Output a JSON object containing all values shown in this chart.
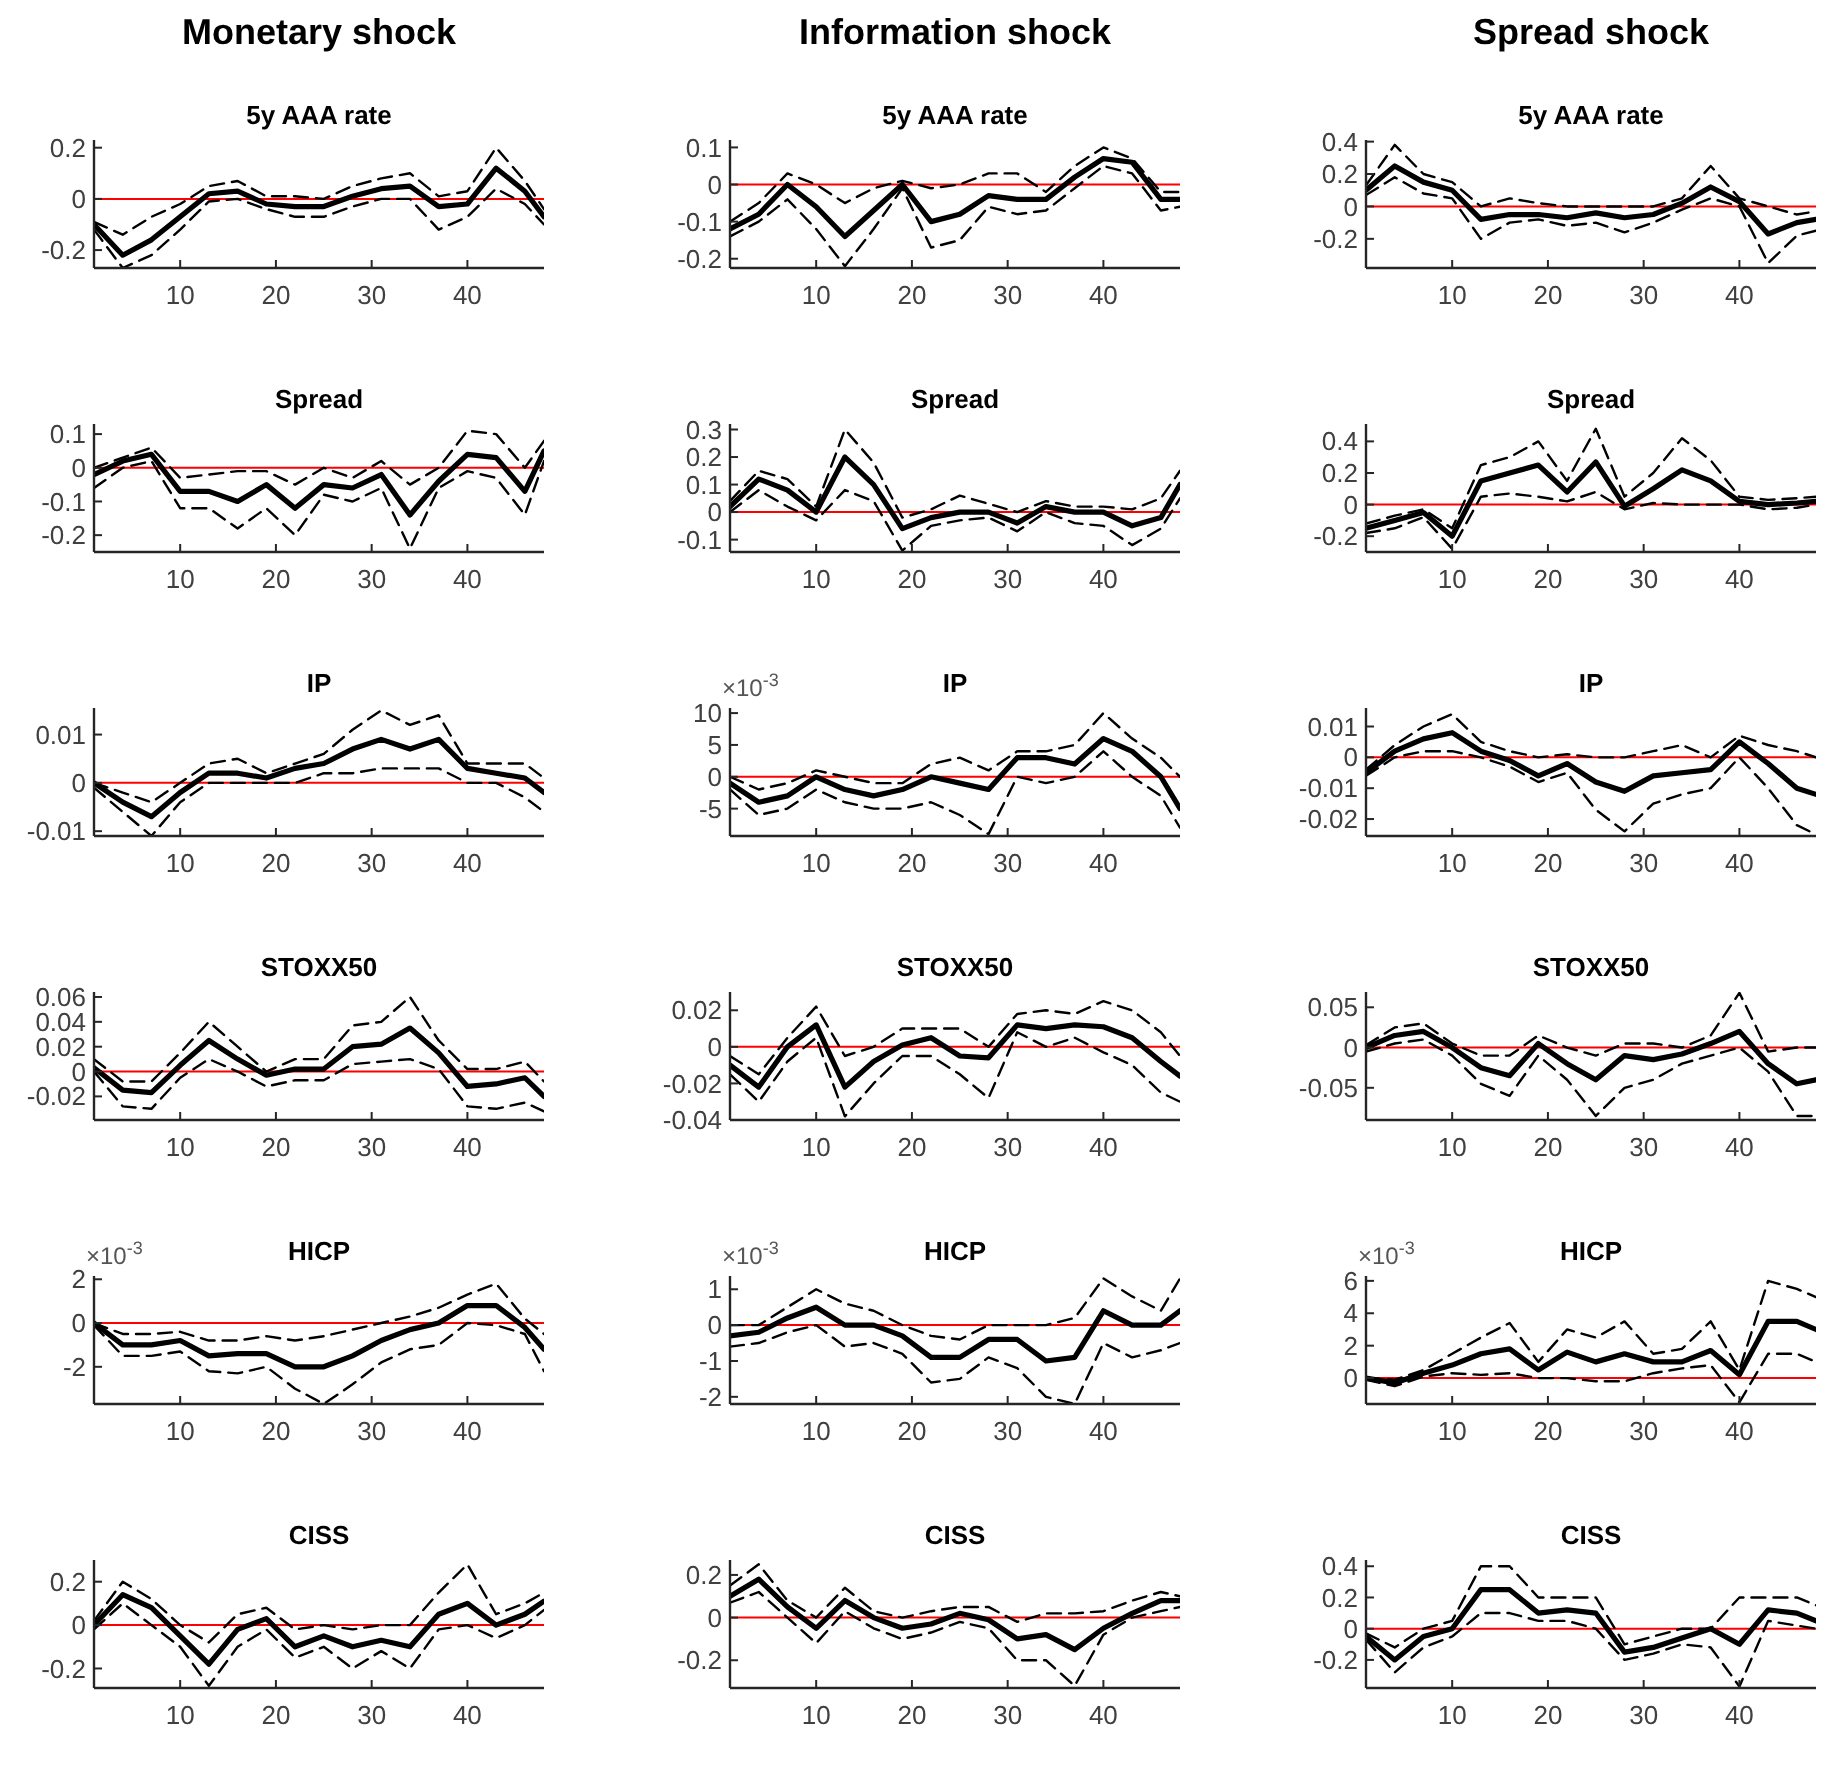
{
  "chart_data": [
    {
      "type": "line",
      "title": "Monetary shock",
      "subtitle": "5y AAA rate",
      "x": [
        1,
        4,
        7,
        10,
        13,
        16,
        19,
        22,
        25,
        28,
        31,
        34,
        37,
        40,
        43,
        46,
        48
      ],
      "xlim": [
        1,
        48
      ],
      "xticks": [
        10,
        20,
        30,
        40
      ],
      "ylim": [
        -0.27,
        0.23
      ],
      "yticks": [
        -0.2,
        0,
        0.2
      ],
      "ref_lines": [
        {
          "axis": "y",
          "value": 0,
          "color": "#ff0000"
        }
      ],
      "series": [
        {
          "color": "#000000",
          "line_style": "solid",
          "values": [
            -0.1,
            -0.22,
            -0.16,
            -0.07,
            0.02,
            0.03,
            -0.02,
            -0.03,
            -0.03,
            0.01,
            0.04,
            0.05,
            -0.03,
            -0.02,
            0.12,
            0.03,
            -0.07
          ]
        },
        {
          "color": "#000000",
          "line_style": "dashed",
          "values": [
            -0.09,
            -0.14,
            -0.07,
            -0.02,
            0.05,
            0.07,
            0.01,
            0.01,
            0.0,
            0.05,
            0.08,
            0.1,
            0.01,
            0.03,
            0.2,
            0.07,
            -0.04
          ]
        },
        {
          "color": "#000000",
          "line_style": "dashed",
          "values": [
            -0.12,
            -0.27,
            -0.22,
            -0.12,
            -0.01,
            0.0,
            -0.04,
            -0.07,
            -0.07,
            -0.03,
            0.0,
            0.0,
            -0.12,
            -0.07,
            0.04,
            -0.02,
            -0.1
          ]
        }
      ]
    },
    {
      "type": "line",
      "title": "Information shock",
      "subtitle": "5y AAA rate",
      "x": [
        1,
        4,
        7,
        10,
        13,
        16,
        19,
        22,
        25,
        28,
        31,
        34,
        37,
        40,
        43,
        46,
        48
      ],
      "xlim": [
        1,
        48
      ],
      "xticks": [
        10,
        20,
        30,
        40
      ],
      "ylim": [
        -0.225,
        0.12
      ],
      "yticks": [
        -0.2,
        -0.1,
        0,
        0.1
      ],
      "ref_lines": [
        {
          "axis": "y",
          "value": 0,
          "color": "#ff0000"
        }
      ],
      "series": [
        {
          "color": "#000000",
          "line_style": "solid",
          "values": [
            -0.12,
            -0.08,
            0.0,
            -0.06,
            -0.14,
            -0.07,
            0.0,
            -0.1,
            -0.08,
            -0.03,
            -0.04,
            -0.04,
            0.02,
            0.07,
            0.06,
            -0.04,
            -0.04
          ]
        },
        {
          "color": "#000000",
          "line_style": "dashed",
          "values": [
            -0.1,
            -0.05,
            0.03,
            0.0,
            -0.05,
            -0.01,
            0.01,
            -0.01,
            0.0,
            0.03,
            0.03,
            -0.02,
            0.05,
            0.1,
            0.07,
            -0.02,
            -0.02
          ]
        },
        {
          "color": "#000000",
          "line_style": "dashed",
          "values": [
            -0.14,
            -0.1,
            -0.04,
            -0.12,
            -0.22,
            -0.12,
            -0.01,
            -0.17,
            -0.15,
            -0.06,
            -0.08,
            -0.07,
            -0.01,
            0.05,
            0.03,
            -0.07,
            -0.06
          ]
        }
      ]
    },
    {
      "type": "line",
      "title": "Spread shock",
      "subtitle": "5y AAA rate",
      "x": [
        1,
        4,
        7,
        10,
        13,
        16,
        19,
        22,
        25,
        28,
        31,
        34,
        37,
        40,
        43,
        46,
        48
      ],
      "xlim": [
        1,
        48
      ],
      "xticks": [
        10,
        20,
        30,
        40
      ],
      "ylim": [
        -0.38,
        0.41
      ],
      "yticks": [
        -0.2,
        0,
        0.2,
        0.4
      ],
      "ref_lines": [
        {
          "axis": "y",
          "value": 0,
          "color": "#ff0000"
        }
      ],
      "series": [
        {
          "color": "#000000",
          "line_style": "solid",
          "values": [
            0.1,
            0.25,
            0.15,
            0.1,
            -0.08,
            -0.05,
            -0.05,
            -0.07,
            -0.04,
            -0.07,
            -0.05,
            0.02,
            0.12,
            0.03,
            -0.17,
            -0.1,
            -0.08
          ]
        },
        {
          "color": "#000000",
          "line_style": "dashed",
          "values": [
            0.13,
            0.38,
            0.2,
            0.15,
            0.0,
            0.05,
            0.02,
            0.0,
            0.0,
            0.0,
            0.0,
            0.05,
            0.25,
            0.05,
            0.0,
            -0.05,
            -0.03
          ]
        },
        {
          "color": "#000000",
          "line_style": "dashed",
          "values": [
            0.07,
            0.18,
            0.08,
            0.05,
            -0.2,
            -0.1,
            -0.08,
            -0.12,
            -0.1,
            -0.16,
            -0.1,
            -0.02,
            0.05,
            0.0,
            -0.35,
            -0.18,
            -0.15
          ]
        }
      ]
    },
    {
      "type": "line",
      "title": "Spread",
      "x": [
        1,
        4,
        7,
        10,
        13,
        16,
        19,
        22,
        25,
        28,
        31,
        34,
        37,
        40,
        43,
        46,
        48
      ],
      "xlim": [
        1,
        48
      ],
      "xticks": [
        10,
        20,
        30,
        40
      ],
      "ylim": [
        -0.25,
        0.13
      ],
      "yticks": [
        -0.2,
        -0.1,
        0,
        0.1
      ],
      "ref_lines": [
        {
          "axis": "y",
          "value": 0,
          "color": "#ff0000"
        }
      ],
      "series": [
        {
          "color": "#000000",
          "line_style": "solid",
          "values": [
            -0.02,
            0.02,
            0.04,
            -0.07,
            -0.07,
            -0.1,
            -0.05,
            -0.12,
            -0.05,
            -0.06,
            -0.02,
            -0.14,
            -0.04,
            0.04,
            0.03,
            -0.07,
            0.05
          ]
        },
        {
          "color": "#000000",
          "line_style": "dashed",
          "values": [
            0.0,
            0.03,
            0.06,
            -0.03,
            -0.02,
            -0.01,
            -0.01,
            -0.05,
            0.0,
            -0.03,
            0.02,
            -0.05,
            0.0,
            0.11,
            0.1,
            0.0,
            0.08
          ]
        },
        {
          "color": "#000000",
          "line_style": "dashed",
          "values": [
            -0.06,
            0.0,
            0.02,
            -0.12,
            -0.12,
            -0.18,
            -0.12,
            -0.2,
            -0.08,
            -0.1,
            -0.06,
            -0.24,
            -0.06,
            -0.01,
            -0.03,
            -0.14,
            0.02
          ]
        }
      ]
    },
    {
      "type": "line",
      "title": "Spread",
      "x": [
        1,
        4,
        7,
        10,
        13,
        16,
        19,
        22,
        25,
        28,
        31,
        34,
        37,
        40,
        43,
        46,
        48
      ],
      "xlim": [
        1,
        48
      ],
      "xticks": [
        10,
        20,
        30,
        40
      ],
      "ylim": [
        -0.145,
        0.32
      ],
      "yticks": [
        -0.1,
        0,
        0.1,
        0.2,
        0.3
      ],
      "ref_lines": [
        {
          "axis": "y",
          "value": 0,
          "color": "#ff0000"
        }
      ],
      "series": [
        {
          "color": "#000000",
          "line_style": "solid",
          "values": [
            0.02,
            0.12,
            0.08,
            0.0,
            0.2,
            0.1,
            -0.06,
            -0.02,
            0.0,
            0.0,
            -0.04,
            0.02,
            0.0,
            0.0,
            -0.05,
            -0.02,
            0.1
          ]
        },
        {
          "color": "#000000",
          "line_style": "dashed",
          "values": [
            0.04,
            0.15,
            0.12,
            0.02,
            0.3,
            0.18,
            -0.02,
            0.01,
            0.06,
            0.03,
            0.0,
            0.04,
            0.02,
            0.02,
            0.01,
            0.05,
            0.15
          ]
        },
        {
          "color": "#000000",
          "line_style": "dashed",
          "values": [
            0.0,
            0.08,
            0.02,
            -0.03,
            0.08,
            0.04,
            -0.14,
            -0.05,
            -0.03,
            -0.02,
            -0.07,
            0.0,
            -0.04,
            -0.05,
            -0.12,
            -0.06,
            0.05
          ]
        }
      ]
    },
    {
      "type": "line",
      "title": "Spread",
      "x": [
        1,
        4,
        7,
        10,
        13,
        16,
        19,
        22,
        25,
        28,
        31,
        34,
        37,
        40,
        43,
        46,
        48
      ],
      "xlim": [
        1,
        48
      ],
      "xticks": [
        10,
        20,
        30,
        40
      ],
      "ylim": [
        -0.3,
        0.51
      ],
      "yticks": [
        -0.2,
        0,
        0.2,
        0.4
      ],
      "ref_lines": [
        {
          "axis": "y",
          "value": 0,
          "color": "#ff0000"
        }
      ],
      "series": [
        {
          "color": "#000000",
          "line_style": "solid",
          "values": [
            -0.15,
            -0.1,
            -0.05,
            -0.2,
            0.15,
            0.2,
            0.25,
            0.08,
            0.27,
            -0.01,
            0.1,
            0.22,
            0.15,
            0.02,
            0.0,
            0.01,
            0.02
          ]
        },
        {
          "color": "#000000",
          "line_style": "dashed",
          "values": [
            -0.12,
            -0.07,
            -0.03,
            -0.15,
            0.25,
            0.3,
            0.4,
            0.15,
            0.48,
            0.05,
            0.2,
            0.42,
            0.28,
            0.05,
            0.03,
            0.04,
            0.05
          ]
        },
        {
          "color": "#000000",
          "line_style": "dashed",
          "values": [
            -0.18,
            -0.15,
            -0.08,
            -0.28,
            0.05,
            0.07,
            0.05,
            0.02,
            0.08,
            -0.03,
            0.01,
            0.0,
            0.0,
            0.0,
            -0.03,
            -0.02,
            0.0
          ]
        }
      ]
    },
    {
      "type": "line",
      "title": "IP",
      "x": [
        1,
        4,
        7,
        10,
        13,
        16,
        19,
        22,
        25,
        28,
        31,
        34,
        37,
        40,
        43,
        46,
        48
      ],
      "xlim": [
        1,
        48
      ],
      "xticks": [
        10,
        20,
        30,
        40
      ],
      "ylim": [
        -0.011,
        0.0155
      ],
      "yticks": [
        -0.01,
        0,
        0.01
      ],
      "ref_lines": [
        {
          "axis": "y",
          "value": 0,
          "color": "#ff0000"
        }
      ],
      "series": [
        {
          "color": "#000000",
          "line_style": "solid",
          "values": [
            0,
            -0.004,
            -0.007,
            -0.002,
            0.002,
            0.002,
            0.001,
            0.003,
            0.004,
            0.007,
            0.009,
            0.007,
            0.009,
            0.003,
            0.002,
            0.001,
            -0.002
          ]
        },
        {
          "color": "#000000",
          "line_style": "dashed",
          "values": [
            0.0,
            -0.002,
            -0.004,
            0.0,
            0.004,
            0.005,
            0.002,
            0.004,
            0.006,
            0.011,
            0.015,
            0.012,
            0.014,
            0.004,
            0.004,
            0.004,
            0.001
          ]
        },
        {
          "color": "#000000",
          "line_style": "dashed",
          "values": [
            -0.001,
            -0.006,
            -0.011,
            -0.004,
            0.0,
            0.0,
            0.0,
            0.0,
            0.002,
            0.002,
            0.003,
            0.003,
            0.003,
            0.0,
            0.0,
            -0.003,
            -0.006
          ]
        }
      ]
    },
    {
      "type": "line",
      "title": "IP",
      "annotations": [
        "×10$^{-3}$"
      ],
      "x": [
        1,
        4,
        7,
        10,
        13,
        16,
        19,
        22,
        25,
        28,
        31,
        34,
        37,
        40,
        43,
        46,
        48
      ],
      "xlim": [
        1,
        48
      ],
      "xticks": [
        10,
        20,
        30,
        40
      ],
      "ylim": [
        -9.3,
        10.8
      ],
      "yticks": [
        -5,
        0,
        5,
        10
      ],
      "ref_lines": [
        {
          "axis": "y",
          "value": 0,
          "color": "#ff0000"
        }
      ],
      "series": [
        {
          "color": "#000000",
          "line_style": "solid",
          "values": [
            -1,
            -4,
            -3,
            0,
            -2,
            -3,
            -2,
            0,
            -1,
            -2,
            3,
            3,
            2,
            6,
            4,
            0,
            -5
          ]
        },
        {
          "color": "#000000",
          "line_style": "dashed",
          "values": [
            0,
            -2,
            -1,
            1,
            0,
            -1,
            -1,
            2,
            3,
            1,
            4,
            4,
            5,
            10,
            6,
            3,
            0
          ]
        },
        {
          "color": "#000000",
          "line_style": "dashed",
          "values": [
            -2,
            -6,
            -5,
            -2,
            -4,
            -5,
            -5,
            -4,
            -6,
            -9,
            0,
            -1,
            0,
            4,
            0,
            -3,
            -8
          ]
        }
      ]
    },
    {
      "type": "line",
      "title": "IP",
      "x": [
        1,
        4,
        7,
        10,
        13,
        16,
        19,
        22,
        25,
        28,
        31,
        34,
        37,
        40,
        43,
        46,
        48
      ],
      "xlim": [
        1,
        48
      ],
      "xticks": [
        10,
        20,
        30,
        40
      ],
      "ylim": [
        -0.0255,
        0.016
      ],
      "yticks": [
        -0.02,
        -0.01,
        0,
        0.01
      ],
      "ref_lines": [
        {
          "axis": "y",
          "value": 0,
          "color": "#ff0000"
        }
      ],
      "series": [
        {
          "color": "#000000",
          "line_style": "solid",
          "values": [
            -0.005,
            0.002,
            0.006,
            0.008,
            0.002,
            -0.001,
            -0.006,
            -0.002,
            -0.008,
            -0.011,
            -0.006,
            -0.005,
            -0.004,
            0.005,
            -0.002,
            -0.01,
            -0.012
          ]
        },
        {
          "color": "#000000",
          "line_style": "dashed",
          "values": [
            -0.004,
            0.004,
            0.01,
            0.014,
            0.005,
            0.002,
            0.0,
            0.001,
            0.0,
            0.0,
            0.002,
            0.004,
            0.0,
            0.007,
            0.004,
            0.002,
            0.0
          ]
        },
        {
          "color": "#000000",
          "line_style": "dashed",
          "values": [
            -0.006,
            0.0,
            0.002,
            0.002,
            0.0,
            -0.003,
            -0.008,
            -0.005,
            -0.017,
            -0.024,
            -0.015,
            -0.012,
            -0.01,
            0.0,
            -0.01,
            -0.022,
            -0.025
          ]
        }
      ]
    },
    {
      "type": "line",
      "title": "STOXX50",
      "x": [
        1,
        4,
        7,
        10,
        13,
        16,
        19,
        22,
        25,
        28,
        31,
        34,
        37,
        40,
        43,
        46,
        48
      ],
      "xlim": [
        1,
        48
      ],
      "xticks": [
        10,
        20,
        30,
        40
      ],
      "ylim": [
        -0.039,
        0.064
      ],
      "yticks": [
        -0.02,
        0,
        0.02,
        0.04,
        0.06
      ],
      "ref_lines": [
        {
          "axis": "y",
          "value": 0,
          "color": "#ff0000"
        }
      ],
      "series": [
        {
          "color": "#000000",
          "line_style": "solid",
          "values": [
            0.003,
            -0.015,
            -0.017,
            0.005,
            0.025,
            0.01,
            -0.003,
            0.002,
            0.002,
            0.02,
            0.022,
            0.035,
            0.015,
            -0.012,
            -0.01,
            -0.005,
            -0.02
          ]
        },
        {
          "color": "#000000",
          "line_style": "dashed",
          "values": [
            0.01,
            -0.008,
            -0.008,
            0.015,
            0.04,
            0.02,
            0.0,
            0.01,
            0.01,
            0.037,
            0.04,
            0.06,
            0.025,
            0.002,
            0.002,
            0.008,
            -0.008
          ]
        },
        {
          "color": "#000000",
          "line_style": "dashed",
          "values": [
            0.0,
            -0.028,
            -0.03,
            -0.005,
            0.01,
            0.0,
            -0.012,
            -0.007,
            -0.007,
            0.006,
            0.008,
            0.01,
            0.002,
            -0.028,
            -0.03,
            -0.025,
            -0.032
          ]
        }
      ]
    },
    {
      "type": "line",
      "title": "STOXX50",
      "x": [
        1,
        4,
        7,
        10,
        13,
        16,
        19,
        22,
        25,
        28,
        31,
        34,
        37,
        40,
        43,
        46,
        48
      ],
      "xlim": [
        1,
        48
      ],
      "xticks": [
        10,
        20,
        30,
        40
      ],
      "ylim": [
        -0.04,
        0.03
      ],
      "yticks": [
        -0.04,
        -0.02,
        0,
        0.02
      ],
      "ref_lines": [
        {
          "axis": "y",
          "value": 0,
          "color": "#ff0000"
        }
      ],
      "series": [
        {
          "color": "#000000",
          "line_style": "solid",
          "values": [
            -0.01,
            -0.022,
            0.0,
            0.012,
            -0.022,
            -0.008,
            0.001,
            0.005,
            -0.005,
            -0.006,
            0.012,
            0.01,
            0.012,
            0.011,
            0.005,
            -0.008,
            -0.016
          ]
        },
        {
          "color": "#000000",
          "line_style": "dashed",
          "values": [
            -0.005,
            -0.015,
            0.005,
            0.022,
            -0.005,
            0.0,
            0.01,
            0.01,
            0.01,
            0.0,
            0.018,
            0.02,
            0.018,
            0.025,
            0.02,
            0.008,
            -0.005
          ]
        },
        {
          "color": "#000000",
          "line_style": "dashed",
          "values": [
            -0.015,
            -0.03,
            -0.008,
            0.005,
            -0.038,
            -0.02,
            -0.005,
            -0.005,
            -0.015,
            -0.028,
            0.008,
            0.0,
            0.005,
            -0.003,
            -0.01,
            -0.025,
            -0.03
          ]
        }
      ]
    },
    {
      "type": "line",
      "title": "STOXX50",
      "x": [
        1,
        4,
        7,
        10,
        13,
        16,
        19,
        22,
        25,
        28,
        31,
        34,
        37,
        40,
        43,
        46,
        48
      ],
      "xlim": [
        1,
        48
      ],
      "xticks": [
        10,
        20,
        30,
        40
      ],
      "ylim": [
        -0.09,
        0.069
      ],
      "yticks": [
        -0.05,
        0,
        0.05
      ],
      "ref_lines": [
        {
          "axis": "y",
          "value": 0,
          "color": "#ff0000"
        }
      ],
      "series": [
        {
          "color": "#000000",
          "line_style": "solid",
          "values": [
            0.0,
            0.015,
            0.02,
            0.0,
            -0.025,
            -0.035,
            0.005,
            -0.02,
            -0.04,
            -0.01,
            -0.015,
            -0.008,
            0.005,
            0.02,
            -0.02,
            -0.045,
            -0.04
          ]
        },
        {
          "color": "#000000",
          "line_style": "dashed",
          "values": [
            0.003,
            0.025,
            0.03,
            0.005,
            -0.01,
            -0.01,
            0.015,
            0.0,
            -0.01,
            0.005,
            0.005,
            0.0,
            0.015,
            0.068,
            -0.005,
            0.0,
            0.0
          ]
        },
        {
          "color": "#000000",
          "line_style": "dashed",
          "values": [
            -0.005,
            0.005,
            0.01,
            -0.01,
            -0.045,
            -0.06,
            -0.01,
            -0.04,
            -0.085,
            -0.05,
            -0.04,
            -0.02,
            -0.01,
            0.0,
            -0.03,
            -0.085,
            -0.085
          ]
        }
      ]
    },
    {
      "type": "line",
      "title": "HICP",
      "annotations": [
        "×10$^{-3}$"
      ],
      "x": [
        1,
        4,
        7,
        10,
        13,
        16,
        19,
        22,
        25,
        28,
        31,
        34,
        37,
        40,
        43,
        46,
        48
      ],
      "xlim": [
        1,
        48
      ],
      "xticks": [
        10,
        20,
        30,
        40
      ],
      "ylim": [
        -3.7,
        2.15
      ],
      "yticks": [
        -2,
        0,
        2
      ],
      "ref_lines": [
        {
          "axis": "y",
          "value": 0,
          "color": "#ff0000"
        }
      ],
      "series": [
        {
          "color": "#000000",
          "line_style": "solid",
          "values": [
            0,
            -1,
            -1,
            -0.8,
            -1.5,
            -1.4,
            -1.4,
            -2,
            -2,
            -1.5,
            -0.8,
            -0.3,
            0,
            0.8,
            0.8,
            -0.2,
            -1.2
          ]
        },
        {
          "color": "#000000",
          "line_style": "dashed",
          "values": [
            0,
            -0.5,
            -0.5,
            -0.4,
            -0.8,
            -0.8,
            -0.6,
            -0.8,
            -0.6,
            -0.3,
            0.0,
            0.3,
            0.7,
            1.3,
            1.8,
            0.2,
            -0.5
          ]
        },
        {
          "color": "#000000",
          "line_style": "dashed",
          "values": [
            -0.1,
            -1.5,
            -1.5,
            -1.3,
            -2.2,
            -2.3,
            -2,
            -3,
            -3.7,
            -2.8,
            -1.8,
            -1.2,
            -1,
            0,
            -0.1,
            -0.5,
            -2.2
          ]
        }
      ]
    },
    {
      "type": "line",
      "title": "HICP",
      "annotations": [
        "×10$^{-3}$"
      ],
      "x": [
        1,
        4,
        7,
        10,
        13,
        16,
        19,
        22,
        25,
        28,
        31,
        34,
        37,
        40,
        43,
        46,
        48
      ],
      "xlim": [
        1,
        48
      ],
      "xticks": [
        10,
        20,
        30,
        40
      ],
      "ylim": [
        -2.2,
        1.37
      ],
      "yticks": [
        -2,
        -1,
        0,
        1
      ],
      "ref_lines": [
        {
          "axis": "y",
          "value": 0,
          "color": "#ff0000"
        }
      ],
      "series": [
        {
          "color": "#000000",
          "line_style": "solid",
          "values": [
            -0.3,
            -0.2,
            0.2,
            0.5,
            0.0,
            0.0,
            -0.3,
            -0.9,
            -0.9,
            -0.4,
            -0.4,
            -1.0,
            -0.9,
            0.4,
            0.0,
            0.0,
            0.4
          ]
        },
        {
          "color": "#000000",
          "line_style": "dashed",
          "values": [
            0.0,
            0.0,
            0.5,
            1.0,
            0.6,
            0.4,
            0.0,
            -0.3,
            -0.4,
            0.0,
            0.0,
            0.0,
            0.2,
            1.3,
            0.8,
            0.4,
            1.3
          ]
        },
        {
          "color": "#000000",
          "line_style": "dashed",
          "values": [
            -0.6,
            -0.5,
            -0.2,
            0.0,
            -0.6,
            -0.5,
            -0.8,
            -1.6,
            -1.5,
            -0.9,
            -1.2,
            -2.0,
            -2.2,
            -0.5,
            -0.9,
            -0.7,
            -0.5
          ]
        }
      ]
    },
    {
      "type": "line",
      "title": "HICP",
      "annotations": [
        "×10$^{-3}$"
      ],
      "x": [
        1,
        4,
        7,
        10,
        13,
        16,
        19,
        22,
        25,
        28,
        31,
        34,
        37,
        40,
        43,
        46,
        48
      ],
      "xlim": [
        1,
        48
      ],
      "xticks": [
        10,
        20,
        30,
        40
      ],
      "ylim": [
        -1.6,
        6.3
      ],
      "yticks": [
        0,
        2,
        4,
        6
      ],
      "ref_lines": [
        {
          "axis": "y",
          "value": 0,
          "color": "#ff0000"
        }
      ],
      "series": [
        {
          "color": "#000000",
          "line_style": "solid",
          "values": [
            0,
            -0.3,
            0.3,
            0.8,
            1.5,
            1.8,
            0.5,
            1.6,
            1.0,
            1.5,
            1.0,
            1.0,
            1.7,
            0.2,
            3.5,
            3.5,
            3
          ]
        },
        {
          "color": "#000000",
          "line_style": "dashed",
          "values": [
            0,
            -0.1,
            0.5,
            1.5,
            2.5,
            3.4,
            1.0,
            3.0,
            2.5,
            3.5,
            1.5,
            1.8,
            3.5,
            0.5,
            6.0,
            5.5,
            5.0
          ]
        },
        {
          "color": "#000000",
          "line_style": "dashed",
          "values": [
            -0.1,
            -0.5,
            0.1,
            0.3,
            0.2,
            0.3,
            0.0,
            0.0,
            -0.2,
            -0.2,
            0.3,
            0.6,
            0.8,
            -1.5,
            1.5,
            1.5,
            1.0
          ]
        }
      ]
    },
    {
      "type": "line",
      "title": "CISS",
      "x": [
        1,
        4,
        7,
        10,
        13,
        16,
        19,
        22,
        25,
        28,
        31,
        34,
        37,
        40,
        43,
        46,
        48
      ],
      "xlim": [
        1,
        48
      ],
      "xticks": [
        10,
        20,
        30,
        40
      ],
      "ylim": [
        -0.29,
        0.3
      ],
      "yticks": [
        -0.2,
        0,
        0.2
      ],
      "ref_lines": [
        {
          "axis": "y",
          "value": 0,
          "color": "#ff0000"
        }
      ],
      "series": [
        {
          "color": "#000000",
          "line_style": "solid",
          "values": [
            0.0,
            0.14,
            0.08,
            -0.05,
            -0.18,
            -0.02,
            0.03,
            -0.1,
            -0.05,
            -0.1,
            -0.07,
            -0.1,
            0.05,
            0.1,
            0.0,
            0.05,
            0.11
          ]
        },
        {
          "color": "#000000",
          "line_style": "dashed",
          "values": [
            0.02,
            0.2,
            0.12,
            0.0,
            -0.08,
            0.05,
            0.08,
            -0.02,
            0.0,
            -0.02,
            0.0,
            0.0,
            0.15,
            0.28,
            0.05,
            0.1,
            0.15
          ]
        },
        {
          "color": "#000000",
          "line_style": "dashed",
          "values": [
            -0.02,
            0.1,
            0.0,
            -0.1,
            -0.28,
            -0.1,
            -0.02,
            -0.15,
            -0.1,
            -0.2,
            -0.12,
            -0.2,
            -0.02,
            0.0,
            -0.06,
            0.0,
            0.07
          ]
        }
      ]
    },
    {
      "type": "line",
      "title": "CISS",
      "x": [
        1,
        4,
        7,
        10,
        13,
        16,
        19,
        22,
        25,
        28,
        31,
        34,
        37,
        40,
        43,
        46,
        48
      ],
      "xlim": [
        1,
        48
      ],
      "xticks": [
        10,
        20,
        30,
        40
      ],
      "ylim": [
        -0.33,
        0.27
      ],
      "yticks": [
        -0.2,
        0,
        0.2
      ],
      "ref_lines": [
        {
          "axis": "y",
          "value": 0,
          "color": "#ff0000"
        }
      ],
      "series": [
        {
          "color": "#000000",
          "line_style": "solid",
          "values": [
            0.1,
            0.18,
            0.05,
            -0.05,
            0.08,
            0.0,
            -0.05,
            -0.03,
            0.02,
            -0.01,
            -0.1,
            -0.08,
            -0.15,
            -0.05,
            0.02,
            0.08,
            0.08
          ]
        },
        {
          "color": "#000000",
          "line_style": "dashed",
          "values": [
            0.15,
            0.25,
            0.08,
            0.0,
            0.14,
            0.03,
            0.0,
            0.03,
            0.05,
            0.05,
            -0.02,
            0.02,
            0.02,
            0.03,
            0.08,
            0.12,
            0.1
          ]
        },
        {
          "color": "#000000",
          "line_style": "dashed",
          "values": [
            0.07,
            0.12,
            0.0,
            -0.12,
            0.03,
            -0.05,
            -0.1,
            -0.07,
            -0.02,
            -0.05,
            -0.2,
            -0.2,
            -0.32,
            -0.08,
            0.0,
            0.03,
            0.05
          ]
        }
      ]
    },
    {
      "type": "line",
      "title": "CISS",
      "x": [
        1,
        4,
        7,
        10,
        13,
        16,
        19,
        22,
        25,
        28,
        31,
        34,
        37,
        40,
        43,
        46,
        48
      ],
      "xlim": [
        1,
        48
      ],
      "xticks": [
        10,
        20,
        30,
        40
      ],
      "ylim": [
        -0.38,
        0.44
      ],
      "yticks": [
        -0.2,
        0,
        0.2,
        0.4
      ],
      "ref_lines": [
        {
          "axis": "y",
          "value": 0,
          "color": "#ff0000"
        }
      ],
      "series": [
        {
          "color": "#000000",
          "line_style": "solid",
          "values": [
            -0.05,
            -0.2,
            -0.05,
            0.0,
            0.25,
            0.25,
            0.1,
            0.12,
            0.1,
            -0.15,
            -0.12,
            -0.06,
            0.0,
            -0.1,
            0.12,
            0.1,
            0.05
          ]
        },
        {
          "color": "#000000",
          "line_style": "dashed",
          "values": [
            -0.03,
            -0.12,
            0.0,
            0.05,
            0.4,
            0.4,
            0.2,
            0.2,
            0.2,
            -0.1,
            -0.05,
            0.0,
            0.0,
            0.2,
            0.2,
            0.2,
            0.15
          ]
        },
        {
          "color": "#000000",
          "line_style": "dashed",
          "values": [
            -0.07,
            -0.28,
            -0.12,
            -0.05,
            0.1,
            0.1,
            0.05,
            0.05,
            0.0,
            -0.2,
            -0.16,
            -0.1,
            -0.12,
            -0.37,
            0.05,
            0.02,
            0.0
          ]
        }
      ]
    }
  ]
}
